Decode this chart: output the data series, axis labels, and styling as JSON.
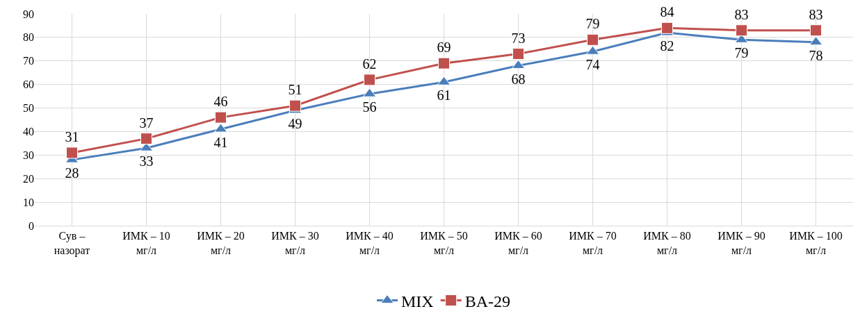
{
  "chart_data": {
    "type": "line",
    "categories": [
      "Сув –\nназорат",
      "ИМК – 10\nмг/л",
      "ИМК – 20\nмг/л",
      "ИМК – 30\nмг/л",
      "ИМК – 40\nмг/л",
      "ИМК – 50\nмг/л",
      "ИМК – 60\nмг/л",
      "ИМК – 70\nмг/л",
      "ИМК – 80\nмг/л",
      "ИМК – 90\nмг/л",
      "ИМК – 100\nмг/л"
    ],
    "series": [
      {
        "name": "MIX",
        "color": "#4a7ebb",
        "marker": "triangle",
        "values": [
          28,
          33,
          41,
          49,
          56,
          61,
          68,
          74,
          82,
          79,
          78
        ]
      },
      {
        "name": "BA-29",
        "color": "#c0504d",
        "marker": "square",
        "values": [
          31,
          37,
          46,
          51,
          62,
          69,
          73,
          79,
          84,
          83,
          83
        ]
      }
    ],
    "ylim": [
      0,
      90
    ],
    "yticks": [
      0,
      10,
      20,
      30,
      40,
      50,
      60,
      70,
      80,
      90
    ],
    "grid": true,
    "legend": "bottom",
    "data_labels": true,
    "line_style": "solid"
  }
}
